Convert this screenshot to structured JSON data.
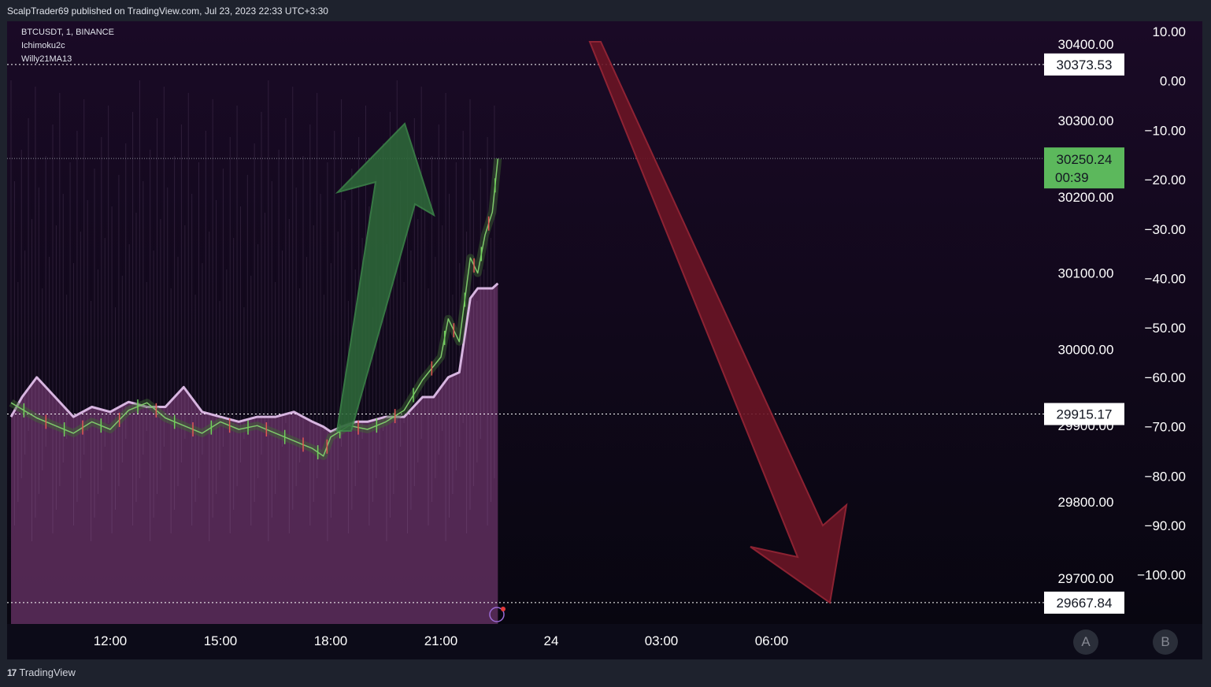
{
  "header": {
    "published": "ScalpTrader69 published on TradingView.com, Jul 23, 2023 22:33 UTC+3:30"
  },
  "legend": {
    "symbol": "BTCUSDT, 1, BINANCE",
    "indicator1": "Ichimoku2c",
    "indicator2": "Willy21MA13"
  },
  "footer": {
    "brand": "TradingView"
  },
  "buttons": {
    "a": "A",
    "b": "B"
  },
  "colors": {
    "background": "#0c0b18",
    "area": "#5a2c5a",
    "ma_line": "#d7b5e0",
    "up_arrow": "#2e6b3a",
    "down_arrow": "#6b1525",
    "last_price": "#5cb85c"
  },
  "chart_data": {
    "type": "line",
    "title": "BTCUSDT, 1, BINANCE",
    "price_axis": {
      "ticks": [
        30400,
        30300,
        30200,
        30100,
        30000,
        29900,
        29800,
        29700
      ],
      "labels": [
        "30400.00",
        "30300.00",
        "30200.00",
        "30100.00",
        "30000.00",
        "29900.00",
        "29800.00",
        "29700.00"
      ]
    },
    "oscillator_axis": {
      "ticks": [
        10,
        0,
        -10,
        -20,
        -30,
        -40,
        -50,
        -60,
        -70,
        -80,
        -90,
        -100
      ],
      "labels": [
        "10.00",
        "0.00",
        "−10.00",
        "−20.00",
        "−30.00",
        "−40.00",
        "−50.00",
        "−60.00",
        "−70.00",
        "−80.00",
        "−90.00",
        "−100.00"
      ]
    },
    "x_axis": {
      "ticks": [
        "12:00",
        "15:00",
        "18:00",
        "21:00",
        "24",
        "03:00",
        "06:00"
      ],
      "hours": [
        12,
        15,
        18,
        21,
        24,
        27,
        30
      ]
    },
    "last_price": {
      "value": 30250.24,
      "label": "30250.24",
      "countdown": "00:39"
    },
    "horizontal_levels": [
      {
        "value": 30373.53,
        "label": "30373.53"
      },
      {
        "value": 29915.17,
        "label": "29915.17"
      },
      {
        "value": 29667.84,
        "label": "29667.84"
      }
    ],
    "series": [
      {
        "name": "BTCUSDT",
        "x": [
          9.3,
          10,
          10.5,
          11,
          11.5,
          12,
          12.5,
          13,
          13.5,
          14,
          14.5,
          15,
          15.5,
          16,
          16.5,
          17,
          17.5,
          17.8,
          18,
          18.5,
          19,
          19.5,
          20,
          20.5,
          21,
          21.2,
          21.5,
          21.8,
          22,
          22.2,
          22.4,
          22.55
        ],
        "values": [
          29930,
          29910,
          29900,
          29890,
          29905,
          29895,
          29920,
          29930,
          29910,
          29900,
          29890,
          29905,
          29895,
          29900,
          29890,
          29880,
          29870,
          29860,
          29885,
          29900,
          29895,
          29905,
          29920,
          29960,
          29990,
          30040,
          30010,
          30120,
          30100,
          30150,
          30180,
          30250
        ]
      },
      {
        "name": "Willy21MA13",
        "x": [
          9.3,
          9.6,
          10,
          10.5,
          11,
          11.5,
          12,
          12.5,
          13,
          13.5,
          14,
          14.5,
          15,
          15.5,
          16,
          16.5,
          17,
          17.5,
          17.8,
          18,
          18.3,
          18.7,
          19,
          19.5,
          20,
          20.5,
          20.8,
          21,
          21.2,
          21.5,
          21.8,
          22,
          22.2,
          22.4,
          22.55
        ],
        "values": [
          -68,
          -64,
          -60,
          -64,
          -68,
          -66,
          -67,
          -65,
          -66,
          -66,
          -62,
          -67,
          -68,
          -69,
          -68,
          -68,
          -67,
          -69,
          -70,
          -71,
          -70,
          -69,
          -69,
          -68,
          -68,
          -64,
          -64,
          -62,
          -60,
          -59,
          -44,
          -42,
          -42,
          -42,
          -41
        ]
      }
    ]
  }
}
